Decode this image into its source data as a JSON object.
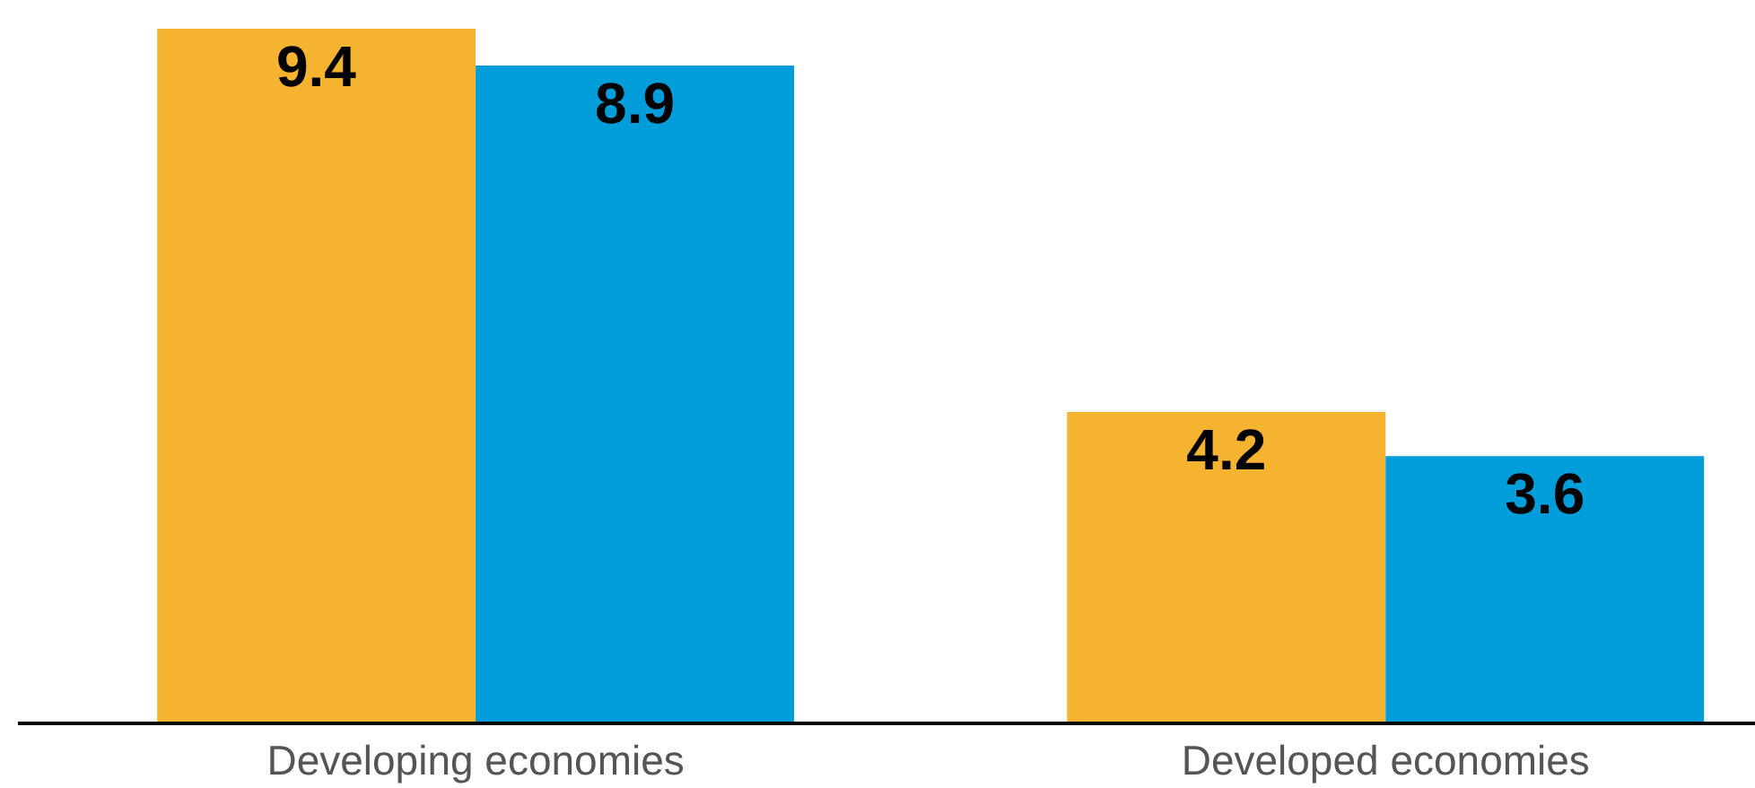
{
  "chart_data": {
    "type": "bar",
    "categories": [
      "Developing economies",
      "Developed economies"
    ],
    "series": [
      {
        "color": "#f5b32f",
        "values": [
          9.4,
          4.2
        ]
      },
      {
        "color": "#009ddb",
        "values": [
          8.9,
          3.6
        ]
      }
    ],
    "data_labels": true
  }
}
